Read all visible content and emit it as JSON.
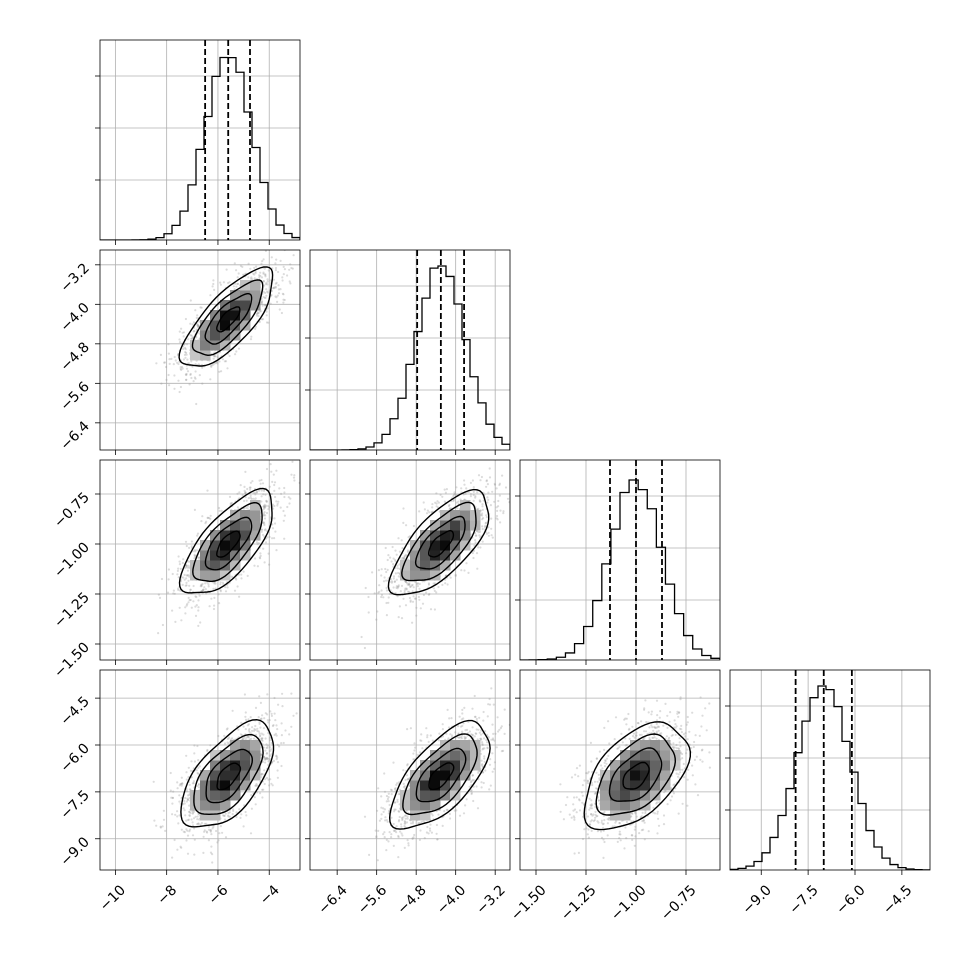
{
  "chart_data": {
    "type": "corner",
    "grid": true,
    "parameters": [
      {
        "range": [
          -10.6,
          -2.8
        ],
        "mean": -5.6,
        "sd": 0.9,
        "quantiles": [
          -6.5,
          -5.6,
          -4.75
        ],
        "ticks": [
          -10,
          -8,
          -6,
          -4
        ],
        "tick_labels": [
          "−10",
          "−8",
          "−6",
          "−4"
        ],
        "hist_bins": 25,
        "hist_peak_frac": 0.93
      },
      {
        "range": [
          -6.95,
          -2.9
        ],
        "mean": -4.3,
        "sd": 0.5,
        "quantiles": [
          -4.78,
          -4.3,
          -3.83
        ],
        "ticks": [
          -6.4,
          -5.6,
          -4.8,
          -4.0,
          -3.2
        ],
        "tick_labels": [
          "−6.4",
          "−5.6",
          "−4.8",
          "−4.0",
          "−3.2"
        ],
        "hist_bins": 25,
        "hist_peak_frac": 0.92
      },
      {
        "range": [
          -1.58,
          -0.58
        ],
        "mean": -1.0,
        "sd": 0.13,
        "quantiles": [
          -1.13,
          -1.0,
          -0.87
        ],
        "ticks": [
          -1.5,
          -1.25,
          -1.0,
          -0.75
        ],
        "tick_labels": [
          "−1.50",
          "−1.25",
          "−1.00",
          "−0.75"
        ],
        "hist_bins": 22,
        "hist_peak_frac": 0.9
      },
      {
        "range": [
          -10.0,
          -3.6
        ],
        "mean": -7.0,
        "sd": 0.85,
        "quantiles": [
          -7.9,
          -7.0,
          -6.1
        ],
        "ticks": [
          -9.0,
          -7.5,
          -6.0,
          -4.5
        ],
        "tick_labels": [
          "−9.0",
          "−7.5",
          "−6.0",
          "−4.5"
        ],
        "hist_bins": 25,
        "hist_peak_frac": 0.92
      }
    ],
    "correlations": [
      [
        1,
        0.75,
        0.7,
        0.6
      ],
      [
        0.75,
        1,
        0.7,
        0.65
      ],
      [
        0.7,
        0.7,
        1,
        0.5
      ],
      [
        0.6,
        0.65,
        0.5,
        1
      ]
    ],
    "contour_levels_sigma": [
      0.5,
      1.0,
      1.5,
      2.0
    ]
  }
}
